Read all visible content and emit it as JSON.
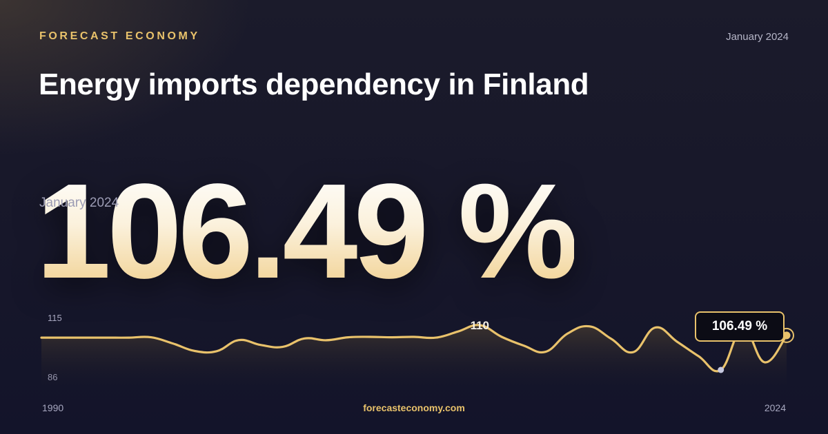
{
  "header": {
    "brand": "FORECAST ECONOMY",
    "date": "January 2024",
    "title": "Energy imports dependency in Finland"
  },
  "headline": {
    "value": "106.49 %",
    "date": "January 2024"
  },
  "footer": {
    "source": "forecasteconomy.com"
  },
  "colors": {
    "accent": "#e9c26b",
    "line": "#e9c26b",
    "min_marker": "#c7c9e0",
    "background": "#17172a"
  },
  "chart_data": {
    "type": "area",
    "title": "",
    "xlabel": "",
    "ylabel": "",
    "x_start_label": "1990",
    "x_end_label": "2024",
    "y_tick_labels": [
      "115",
      "86"
    ],
    "ylim": [
      86,
      115
    ],
    "peak_label": "110",
    "last_value_label": "106.49 %",
    "x": [
      1990,
      1991,
      1992,
      1993,
      1994,
      1995,
      1996,
      1997,
      1998,
      1999,
      2000,
      2001,
      2002,
      2003,
      2004,
      2005,
      2006,
      2007,
      2008,
      2009,
      2010,
      2011,
      2012,
      2013,
      2014,
      2015,
      2016,
      2017,
      2018,
      2019,
      2020,
      2021,
      2022,
      2023,
      2024
    ],
    "values": [
      105.4,
      105.4,
      105.4,
      105.4,
      105.4,
      105.6,
      102.5,
      98.8,
      98.7,
      104.2,
      101.8,
      100.8,
      105,
      104.1,
      105.6,
      105.8,
      105.6,
      105.8,
      105.4,
      108.4,
      111.6,
      105.8,
      101.5,
      98.4,
      107.4,
      111,
      104.8,
      98.2,
      110.4,
      103.4,
      96.1,
      89.4,
      110.1,
      93.2,
      106.49
    ],
    "min_marker_year": 2021,
    "grid": false,
    "legend": "none"
  }
}
